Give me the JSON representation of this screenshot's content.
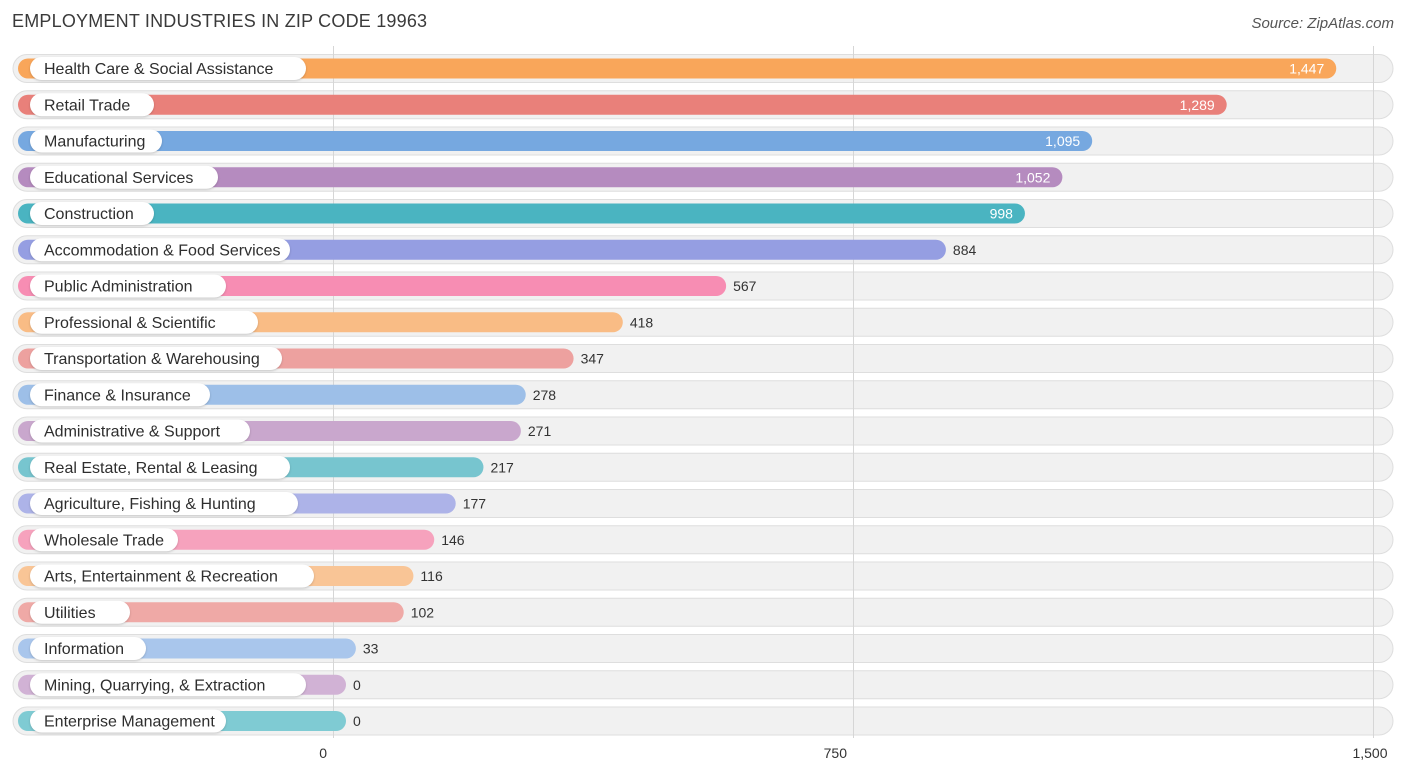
{
  "chart_data": {
    "type": "bar",
    "orientation": "horizontal",
    "title": "EMPLOYMENT INDUSTRIES IN ZIP CODE 19963",
    "source": "Source: ZipAtlas.com",
    "xlim": [
      0,
      1500
    ],
    "x_ticks": [
      {
        "value": 0,
        "label": "0"
      },
      {
        "value": 750,
        "label": "750"
      },
      {
        "value": 1500,
        "label": "1,500"
      }
    ],
    "grid": true,
    "categories": [
      "Health Care & Social Assistance",
      "Retail Trade",
      "Manufacturing",
      "Educational Services",
      "Construction",
      "Accommodation & Food Services",
      "Public Administration",
      "Professional & Scientific",
      "Transportation & Warehousing",
      "Finance & Insurance",
      "Administrative & Support",
      "Real Estate, Rental & Leasing",
      "Agriculture, Fishing & Hunting",
      "Wholesale Trade",
      "Arts, Entertainment & Recreation",
      "Utilities",
      "Information",
      "Mining, Quarrying, & Extraction",
      "Enterprise Management"
    ],
    "values": [
      1447,
      1289,
      1095,
      1052,
      998,
      884,
      567,
      418,
      347,
      278,
      271,
      217,
      177,
      146,
      116,
      102,
      33,
      0,
      0
    ],
    "value_labels": [
      "1,447",
      "1,289",
      "1,095",
      "1,052",
      "998",
      "884",
      "567",
      "418",
      "347",
      "278",
      "271",
      "217",
      "177",
      "146",
      "116",
      "102",
      "33",
      "0",
      "0"
    ],
    "colors": [
      "#f9a65a",
      "#e9807a",
      "#76a8e0",
      "#b58bbf",
      "#4ab4c1",
      "#959ee2",
      "#f78db3",
      "#f9bc85",
      "#eda19f",
      "#9dbfe8",
      "#c9a7cd",
      "#77c5cf",
      "#adb3e8",
      "#f6a2bd",
      "#f9c596",
      "#efa9a6",
      "#a9c6ec",
      "#d1b2d5",
      "#7fcbd3"
    ]
  }
}
